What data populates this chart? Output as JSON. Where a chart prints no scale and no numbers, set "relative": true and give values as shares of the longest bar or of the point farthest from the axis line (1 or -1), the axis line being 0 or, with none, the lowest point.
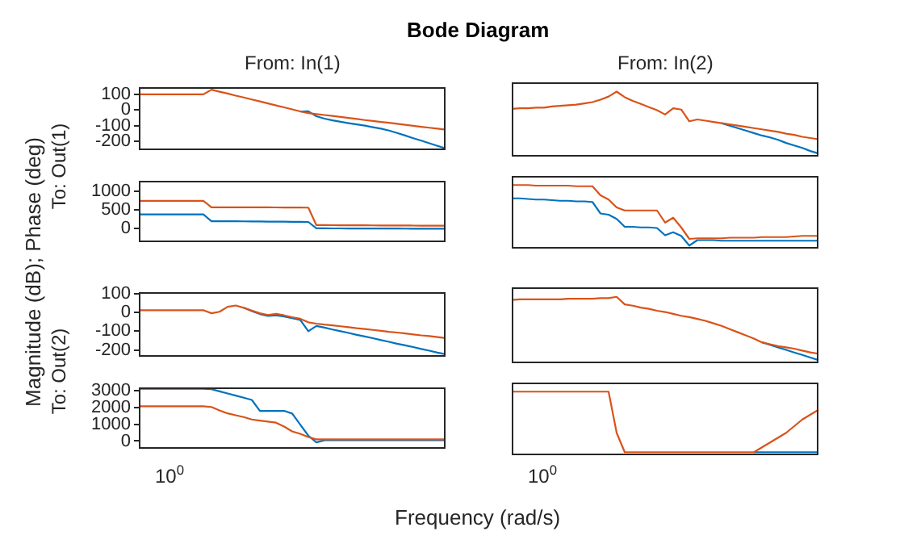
{
  "chart_data": [
    {
      "type": "line",
      "title": "Bode Diagram",
      "subtitle": "From: In(1)",
      "ylabel": "To: Out(1)",
      "annotations": [
        "Magnitude (dB); Phase (deg)"
      ],
      "ylim": [
        -250,
        150
      ],
      "yticks": [
        -200,
        -100,
        0,
        100
      ],
      "tick_labels": "y",
      "categories": [
        null,
        null,
        null,
        null,
        null,
        null,
        null,
        null,
        null,
        null,
        null,
        null,
        null,
        null,
        null,
        null,
        null,
        null,
        null,
        null,
        null,
        null,
        null,
        null,
        null,
        null,
        null,
        null,
        null,
        null,
        null,
        null,
        null,
        null,
        null,
        null,
        null,
        null,
        null
      ],
      "series": [
        {
          "color": "#0072bd",
          "values": [
            null,
            null,
            null,
            null,
            null,
            null,
            null,
            null,
            null,
            null,
            null,
            null,
            null,
            null,
            null,
            null,
            null,
            null,
            null,
            null,
            -10,
            -8,
            -40,
            -55,
            -66,
            -75,
            -84,
            -92,
            -100,
            -110,
            -119,
            -131,
            -147,
            -163,
            -180,
            -196,
            -212,
            -229,
            -245
          ]
        },
        {
          "color": "#d95319",
          "values": [
            100,
            100,
            100,
            100,
            100,
            100,
            100,
            100,
            100,
            130,
            117,
            105,
            92,
            80,
            67,
            55,
            42,
            29,
            17,
            4,
            -9,
            -20,
            -26,
            -32,
            -38,
            -44,
            -51,
            -57,
            -64,
            -70,
            -76,
            -82,
            -88,
            -94,
            -101,
            -107,
            -113,
            -119,
            -125
          ]
        }
      ]
    },
    {
      "type": "line",
      "subtitle": "From: In(2)",
      "relative": true,
      "categories": [
        null,
        null,
        null,
        null,
        null,
        null,
        null,
        null,
        null,
        null,
        null,
        null,
        null,
        null,
        null,
        null,
        null,
        null,
        null,
        null,
        null,
        null,
        null,
        null,
        null,
        null,
        null,
        null,
        null,
        null,
        null,
        null,
        null,
        null,
        null,
        null,
        null,
        null,
        null
      ],
      "series": [
        {
          "color": "#0072bd",
          "values": [
            null,
            null,
            null,
            null,
            null,
            null,
            null,
            null,
            null,
            null,
            null,
            null,
            null,
            null,
            null,
            null,
            null,
            null,
            null,
            null,
            null,
            null,
            null,
            null,
            null,
            null,
            0.49,
            0.45,
            0.41,
            0.37,
            0.33,
            0.29,
            0.26,
            0.22,
            0.17,
            0.13,
            0.09,
            0.04,
            0
          ]
        },
        {
          "color": "#d95319",
          "values": [
            0.72,
            0.73,
            0.73,
            0.74,
            0.74,
            0.76,
            0.77,
            0.78,
            0.79,
            0.81,
            0.83,
            0.87,
            0.92,
            1,
            0.91,
            0.85,
            0.8,
            0.75,
            0.7,
            0.63,
            0.73,
            0.71,
            0.52,
            0.55,
            0.53,
            0.51,
            0.49,
            0.47,
            0.45,
            0.43,
            0.41,
            0.39,
            0.37,
            0.35,
            0.32,
            0.3,
            0.27,
            0.25,
            0.23
          ]
        }
      ]
    },
    {
      "type": "line",
      "ylim": [
        -330,
        1290
      ],
      "yticks": [
        0,
        500,
        1000
      ],
      "tick_labels": "y",
      "categories": [
        null,
        null,
        null,
        null,
        null,
        null,
        null,
        null,
        null,
        null,
        null,
        null,
        null,
        null,
        null,
        null,
        null,
        null,
        null,
        null,
        null,
        null,
        null,
        null,
        null,
        null,
        null,
        null,
        null,
        null,
        null,
        null,
        null,
        null,
        null,
        null,
        null,
        null,
        null
      ],
      "series": [
        {
          "color": "#0072bd",
          "values": [
            380,
            380,
            380,
            380,
            380,
            380,
            380,
            380,
            380,
            200,
            200,
            199,
            198,
            196,
            194,
            192,
            190,
            188,
            186,
            184,
            182,
            180,
            10,
            10,
            9,
            9,
            8,
            8,
            7,
            6,
            5,
            5,
            4,
            3,
            2,
            2,
            1,
            0,
            0
          ]
        },
        {
          "color": "#d95319",
          "values": [
            740,
            740,
            740,
            740,
            740,
            740,
            740,
            740,
            740,
            570,
            570,
            570,
            570,
            570,
            569,
            568,
            567,
            566,
            565,
            563,
            562,
            560,
            95,
            95,
            94,
            93,
            92,
            91,
            90,
            89,
            88,
            87,
            86,
            85,
            84,
            83,
            82,
            81,
            80
          ]
        }
      ]
    },
    {
      "type": "line",
      "relative": true,
      "categories": [
        null,
        null,
        null,
        null,
        null,
        null,
        null,
        null,
        null,
        null,
        null,
        null,
        null,
        null,
        null,
        null,
        null,
        null,
        null,
        null,
        null,
        null,
        null,
        null,
        null,
        null,
        null,
        null,
        null,
        null,
        null,
        null,
        null,
        null,
        null,
        null,
        null,
        null,
        null
      ],
      "series": [
        {
          "color": "#0072bd",
          "values": [
            0.78,
            0.78,
            0.77,
            0.76,
            0.76,
            0.75,
            0.74,
            0.74,
            0.73,
            0.73,
            0.72,
            0.53,
            0.51,
            0.44,
            0.31,
            0.31,
            0.3,
            0.3,
            0.29,
            0.17,
            0.22,
            0.16,
            0,
            0.09,
            0.09,
            0.09,
            0.08,
            0.08,
            0.08,
            0.08,
            0.08,
            0.08,
            0.08,
            0.08,
            0.08,
            0.08,
            0.08,
            0.08,
            0.08
          ]
        },
        {
          "color": "#d95319",
          "values": [
            1,
            1,
            1,
            0.99,
            0.99,
            0.99,
            0.99,
            0.99,
            0.98,
            0.98,
            0.98,
            0.83,
            0.76,
            0.63,
            0.58,
            0.58,
            0.58,
            0.58,
            0.58,
            0.38,
            0.46,
            0.3,
            0.11,
            0.12,
            0.12,
            0.12,
            0.12,
            0.13,
            0.13,
            0.13,
            0.13,
            0.14,
            0.14,
            0.14,
            0.14,
            0.15,
            0.16,
            0.16,
            0.16
          ]
        }
      ]
    },
    {
      "type": "line",
      "ylabel": "To: Out(2)",
      "ylim": [
        -230,
        110
      ],
      "yticks": [
        -200,
        -100,
        0,
        100
      ],
      "tick_labels": "y",
      "categories": [
        null,
        null,
        null,
        null,
        null,
        null,
        null,
        null,
        null,
        null,
        null,
        null,
        null,
        null,
        null,
        null,
        null,
        null,
        null,
        null,
        null,
        null,
        null,
        null,
        null,
        null,
        null,
        null,
        null,
        null,
        null,
        null,
        null,
        null,
        null,
        null,
        null,
        null,
        null
      ],
      "series": [
        {
          "color": "#0072bd",
          "values": [
            null,
            null,
            null,
            null,
            null,
            null,
            null,
            null,
            null,
            null,
            null,
            null,
            null,
            24,
            6,
            -9,
            -19,
            -16,
            -22,
            -31,
            -40,
            -100,
            -72,
            -81,
            -91,
            -100,
            -109,
            -119,
            -128,
            -137,
            -147,
            -156,
            -166,
            -175,
            -184,
            -194,
            -203,
            -213,
            -222
          ]
        },
        {
          "color": "#d95319",
          "values": [
            11,
            11,
            11,
            11,
            11,
            11,
            11,
            11,
            11,
            -5,
            3,
            29,
            36,
            24,
            9,
            -5,
            -14,
            -8,
            -16,
            -26,
            -34,
            -53,
            -60,
            -65,
            -69,
            -74,
            -79,
            -84,
            -88,
            -93,
            -98,
            -103,
            -107,
            -112,
            -117,
            -122,
            -126,
            -131,
            -136
          ]
        }
      ]
    },
    {
      "type": "line",
      "relative": true,
      "categories": [
        null,
        null,
        null,
        null,
        null,
        null,
        null,
        null,
        null,
        null,
        null,
        null,
        null,
        null,
        null,
        null,
        null,
        null,
        null,
        null,
        null,
        null,
        null,
        null,
        null,
        null,
        null,
        null,
        null,
        null,
        null,
        null,
        null,
        null,
        null,
        null,
        null,
        null,
        null
      ],
      "series": [
        {
          "color": "#0072bd",
          "values": [
            null,
            null,
            null,
            null,
            null,
            null,
            null,
            null,
            null,
            null,
            null,
            null,
            null,
            null,
            null,
            null,
            null,
            null,
            null,
            null,
            null,
            null,
            null,
            null,
            null,
            null,
            null,
            null,
            null,
            null,
            null,
            0.28,
            0.24,
            0.2,
            0.16,
            0.12,
            0.08,
            0.04,
            0
          ]
        },
        {
          "color": "#d95319",
          "values": [
            0.95,
            0.96,
            0.96,
            0.96,
            0.96,
            0.96,
            0.96,
            0.97,
            0.97,
            0.97,
            0.97,
            0.98,
            0.98,
            1,
            0.88,
            0.86,
            0.83,
            0.81,
            0.78,
            0.76,
            0.73,
            0.7,
            0.68,
            0.65,
            0.62,
            0.58,
            0.54,
            0.49,
            0.44,
            0.39,
            0.34,
            0.28,
            0.25,
            0.22,
            0.2,
            0.18,
            0.15,
            0.12,
            0.1
          ]
        }
      ]
    },
    {
      "type": "line",
      "xlabel": "Frequency (rad/s)",
      "annotations": [
        "10$^{0}$"
      ],
      "ylim": [
        -400,
        3220
      ],
      "yticks": [
        0,
        1000,
        2000,
        3000
      ],
      "tick_labels": "y",
      "categories": [
        null,
        null,
        null,
        null,
        null,
        null,
        null,
        null,
        null,
        null,
        null,
        null,
        null,
        null,
        null,
        null,
        null,
        null,
        null,
        null,
        null,
        null,
        null,
        null,
        null,
        null,
        null,
        null,
        null,
        null,
        null,
        null,
        null,
        null,
        null,
        null,
        null,
        null,
        null
      ],
      "series": [
        {
          "color": "#0072bd",
          "values": [
            3100,
            3100,
            3100,
            3100,
            3100,
            3100,
            3100,
            3100,
            3100,
            3080,
            2950,
            2820,
            2700,
            2570,
            2440,
            1790,
            1790,
            1790,
            1790,
            1630,
            970,
            320,
            -80,
            50,
            50,
            50,
            50,
            50,
            50,
            50,
            50,
            50,
            50,
            50,
            50,
            50,
            50,
            50,
            50
          ]
        },
        {
          "color": "#d95319",
          "values": [
            2060,
            2060,
            2060,
            2060,
            2060,
            2060,
            2060,
            2060,
            2060,
            2020,
            1820,
            1640,
            1530,
            1420,
            1280,
            1210,
            1150,
            1090,
            860,
            570,
            430,
            240,
            100,
            100,
            100,
            100,
            100,
            100,
            100,
            100,
            100,
            100,
            100,
            100,
            100,
            100,
            100,
            100,
            100
          ]
        }
      ]
    },
    {
      "type": "line",
      "annotations": [
        "10$^{0}$"
      ],
      "relative": true,
      "categories": [
        null,
        null,
        null,
        null,
        null,
        null,
        null,
        null,
        null,
        null,
        null,
        null,
        null,
        null,
        null,
        null,
        null,
        null,
        null,
        null,
        null,
        null,
        null,
        null,
        null,
        null,
        null,
        null,
        null,
        null,
        null,
        null,
        null,
        null,
        null,
        null,
        null,
        null,
        null
      ],
      "series": [
        {
          "color": "#0072bd",
          "values": [
            null,
            null,
            null,
            null,
            null,
            null,
            null,
            null,
            null,
            null,
            null,
            null,
            null,
            null,
            null,
            null,
            null,
            null,
            null,
            null,
            null,
            null,
            null,
            null,
            null,
            null,
            null,
            null,
            null,
            null,
            0,
            0,
            0,
            0,
            0,
            0,
            0,
            0,
            0
          ]
        },
        {
          "color": "#d95319",
          "values": [
            1,
            1,
            1,
            1,
            1,
            1,
            1,
            1,
            1,
            1,
            1,
            1,
            1,
            0.32,
            0,
            0,
            0,
            0,
            0,
            0,
            0,
            0,
            0,
            0,
            0,
            0,
            0,
            0,
            0,
            0,
            0,
            0.08,
            0.16,
            0.24,
            0.32,
            0.43,
            0.54,
            0.62,
            0.7
          ]
        }
      ]
    }
  ]
}
